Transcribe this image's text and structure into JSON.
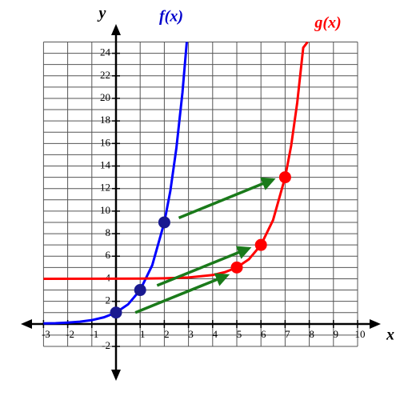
{
  "chart_data": {
    "type": "line",
    "xlabel": "x",
    "ylabel": "y",
    "xlim": [
      -3,
      10
    ],
    "ylim": [
      -2,
      25
    ],
    "xticks": [
      -3,
      -2,
      -1,
      1,
      2,
      3,
      4,
      5,
      6,
      7,
      8,
      9,
      10
    ],
    "yticks": [
      -2,
      2,
      4,
      6,
      8,
      10,
      12,
      14,
      16,
      18,
      20,
      22,
      24
    ],
    "xgrid": [
      -3,
      -2,
      -1,
      0,
      1,
      2,
      3,
      4,
      5,
      6,
      7,
      8,
      9,
      10
    ],
    "ygrid": [
      -2,
      -1,
      0,
      1,
      2,
      3,
      4,
      5,
      6,
      7,
      8,
      9,
      10,
      11,
      12,
      13,
      14,
      15,
      16,
      17,
      18,
      19,
      20,
      21,
      22,
      23,
      24,
      25
    ],
    "grid": true,
    "series": [
      {
        "name": "f(x)",
        "color": "#0000ff",
        "x": [
          -3,
          -2.5,
          -2,
          -1.5,
          -1,
          -0.5,
          0,
          0.5,
          1,
          1.5,
          2,
          2.25,
          2.5,
          2.75,
          2.93
        ],
        "values": [
          0.04,
          0.06,
          0.11,
          0.19,
          0.33,
          0.58,
          1,
          1.73,
          3,
          5.2,
          9,
          11.8,
          15.6,
          20.5,
          25
        ]
      },
      {
        "name": "g(x)",
        "color": "#ff0000",
        "x": [
          -3,
          1,
          2,
          3,
          4,
          4.5,
          5,
          5.5,
          6,
          6.5,
          7,
          7.25,
          7.5,
          7.75,
          7.93
        ],
        "values": [
          4,
          4.01,
          4.04,
          4.11,
          4.33,
          4.58,
          5,
          5.73,
          7,
          9.2,
          13,
          15.8,
          19.6,
          24.5,
          25
        ]
      }
    ],
    "points": [
      {
        "color": "#1a1a90",
        "x": [
          0,
          1,
          2
        ],
        "values": [
          1,
          3,
          9
        ]
      },
      {
        "color": "#ff0000",
        "x": [
          5,
          6,
          7
        ],
        "values": [
          5,
          7,
          13
        ]
      }
    ],
    "arrows": [
      {
        "color": "#1a7a1a",
        "from": [
          0.8,
          1
        ],
        "to": [
          4.6,
          4.3
        ]
      },
      {
        "color": "#1a7a1a",
        "from": [
          1.7,
          3.4
        ],
        "to": [
          5.5,
          6.7
        ]
      },
      {
        "color": "#1a7a1a",
        "from": [
          2.6,
          9.4
        ],
        "to": [
          6.5,
          12.8
        ]
      }
    ]
  }
}
